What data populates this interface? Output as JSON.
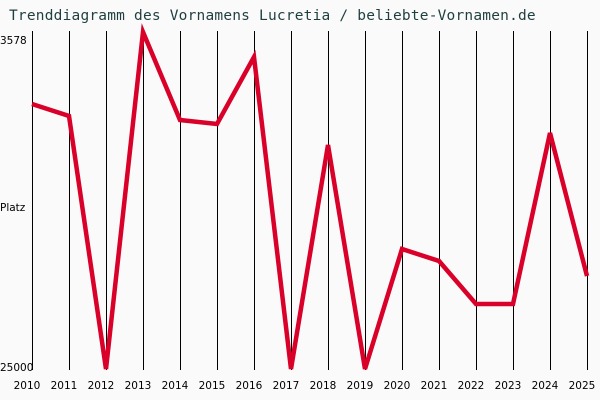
{
  "header": {
    "title": "Trenddiagramm des Vornamens Lucretia / beliebte-Vornamen.de"
  },
  "axes": {
    "y_top_label": "3578",
    "y_mid_label": "Platz",
    "y_bottom_label": "25000"
  },
  "colors": {
    "background": "#fafafa",
    "line": "#d90029",
    "grid": "#000000",
    "title": "#1f3f3f"
  },
  "chart_data": {
    "type": "line",
    "title": "Trenddiagramm des Vornamens Lucretia / beliebte-Vornamen.de",
    "xlabel": "",
    "ylabel": "Platz",
    "ylim": [
      25000,
      3578
    ],
    "y_inverted": true,
    "grid": "vertical",
    "legend": null,
    "categories": [
      "2010",
      "2011",
      "2012",
      "2013",
      "2014",
      "2015",
      "2016",
      "2017",
      "2018",
      "2019",
      "2020",
      "2021",
      "2022",
      "2023",
      "2024",
      "2025"
    ],
    "series": [
      {
        "name": "Lucretia",
        "values": [
          8155,
          8918,
          25000,
          3578,
          9172,
          9426,
          5167,
          25000,
          10761,
          25000,
          17373,
          18136,
          20869,
          20869,
          9999,
          19089
        ]
      }
    ]
  }
}
